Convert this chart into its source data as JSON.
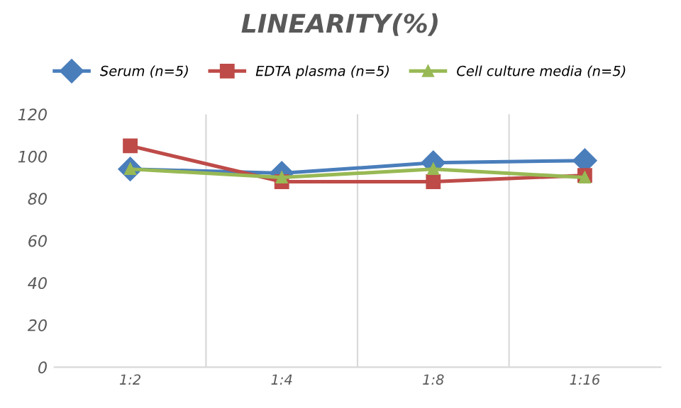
{
  "chart_data": {
    "type": "line",
    "title": "LINEARITY(%)",
    "categories": [
      "1:2",
      "1:4",
      "1:8",
      "1:16"
    ],
    "series": [
      {
        "name": "Serum (n=5)",
        "color": "#4a7ebb",
        "marker": "diamond",
        "values": [
          94,
          92,
          97,
          98
        ]
      },
      {
        "name": "EDTA plasma (n=5)",
        "color": "#be4b48",
        "marker": "square",
        "values": [
          105,
          88,
          88,
          91
        ]
      },
      {
        "name": "Cell culture media (n=5)",
        "color": "#98b954",
        "marker": "triangle",
        "values": [
          94,
          90,
          94,
          90
        ]
      }
    ],
    "ylim": [
      0,
      120
    ],
    "yticks": [
      0,
      20,
      40,
      60,
      80,
      100,
      120
    ],
    "grid": "x",
    "legend": "top"
  }
}
